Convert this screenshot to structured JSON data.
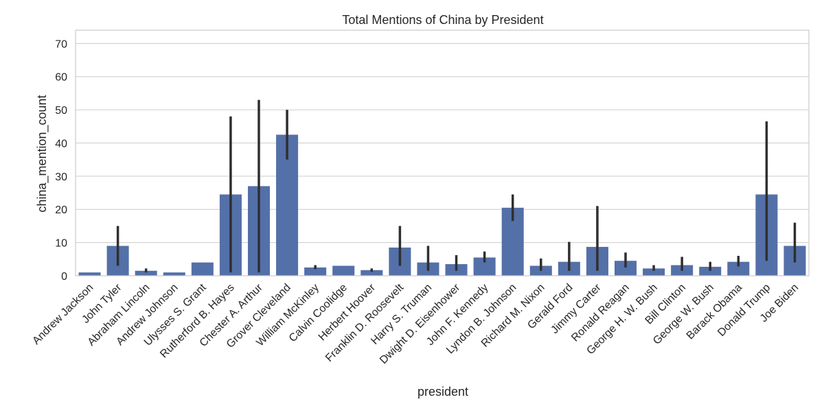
{
  "chart_data": {
    "type": "bar",
    "title": "Total Mentions of China by President",
    "xlabel": "president",
    "ylabel": "china_mention_count",
    "ylim": [
      0,
      74
    ],
    "yticks": [
      "0",
      "10",
      "20",
      "30",
      "40",
      "50",
      "60",
      "70"
    ],
    "grid": true,
    "legend": "none",
    "colors": {
      "bar": "#5470a8",
      "error": "#2f2f2f",
      "grid": "#cccccc",
      "axes": "#cccccc"
    },
    "categories": [
      "Andrew Jackson",
      "John Tyler",
      "Abraham Lincoln",
      "Andrew Johnson",
      "Ulysses S. Grant",
      "Rutherford B. Hayes",
      "Chester A. Arthur",
      "Grover Cleveland",
      "William McKinley",
      "Calvin Coolidge",
      "Herbert Hoover",
      "Franklin D. Roosevelt",
      "Harry S. Truman",
      "Dwight D. Eisenhower",
      "John F. Kennedy",
      "Lyndon B. Johnson",
      "Richard M. Nixon",
      "Gerald Ford",
      "Jimmy Carter",
      "Ronald Reagan",
      "George H. W. Bush",
      "Bill Clinton",
      "George W. Bush",
      "Barack Obama",
      "Donald Trump",
      "Joe Biden"
    ],
    "values": [
      1,
      9,
      1.5,
      1,
      4,
      24.5,
      27,
      42.5,
      2.5,
      3,
      1.7,
      8.5,
      4,
      3.5,
      5.5,
      20.5,
      3,
      4.2,
      8.7,
      4.5,
      2.2,
      3.2,
      2.7,
      4.2,
      24.5,
      9
    ],
    "error_low": [
      null,
      3,
      1,
      null,
      null,
      1,
      1,
      35,
      2,
      null,
      1.2,
      3,
      1.5,
      1.5,
      4,
      16.5,
      1.5,
      1.5,
      1.5,
      2.5,
      1.5,
      1.5,
      1.5,
      2.8,
      4.5,
      4
    ],
    "error_high": [
      null,
      15,
      2.2,
      null,
      null,
      48,
      53,
      50,
      3.2,
      null,
      2.2,
      15,
      9,
      6.2,
      7.3,
      24.5,
      5.2,
      10.2,
      21,
      7,
      3.2,
      5.7,
      4.2,
      6,
      46.5,
      16
    ]
  }
}
